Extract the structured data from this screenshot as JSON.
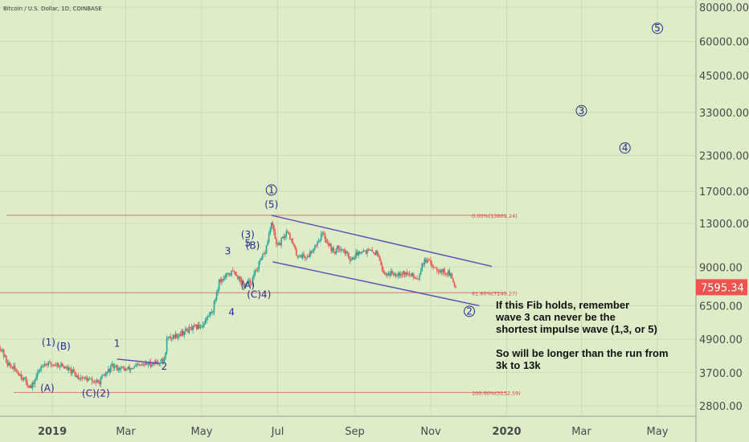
{
  "header": {
    "symbol_line": "Bitcoin / U.S. Dollar, 1D, COINBASE"
  },
  "colors": {
    "background": "#dcedc8",
    "grid": "#c9ddb4",
    "up_candle": "#26a69a",
    "down_candle": "#ef5350",
    "channel": "#5b4bb7",
    "fib": "#e57373",
    "wave_label": "#2b2a8f",
    "price_tag": "#ef5350"
  },
  "chart_data": {
    "type": "candlestick",
    "title": "Bitcoin / U.S. Dollar, 1D, COINBASE",
    "y_scale": "log",
    "ylim": [
      2600,
      85000
    ],
    "x_range": [
      "2018-11-20",
      "2020-06-01"
    ],
    "x_ticks": [
      {
        "date": "2019-01-01",
        "label": "2019",
        "bold": true
      },
      {
        "date": "2019-03-01",
        "label": "Mar"
      },
      {
        "date": "2019-05-01",
        "label": "May"
      },
      {
        "date": "2019-07-01",
        "label": "Jul"
      },
      {
        "date": "2019-09-01",
        "label": "Sep"
      },
      {
        "date": "2019-11-01",
        "label": "Nov"
      },
      {
        "date": "2020-01-01",
        "label": "2020",
        "bold": true
      },
      {
        "date": "2020-03-01",
        "label": "Mar"
      },
      {
        "date": "2020-05-01",
        "label": "May"
      }
    ],
    "y_ticks": [
      {
        "value": 80000,
        "label": "80000.00"
      },
      {
        "value": 60000,
        "label": "60000.00"
      },
      {
        "value": 45000,
        "label": "45000.00"
      },
      {
        "value": 33000,
        "label": "33000.00"
      },
      {
        "value": 23000,
        "label": "23000.00"
      },
      {
        "value": 17000,
        "label": "17000.00"
      },
      {
        "value": 13000,
        "label": "13000.00"
      },
      {
        "value": 9000,
        "label": "9000.00"
      },
      {
        "value": 6500,
        "label": "6500.00"
      },
      {
        "value": 4900,
        "label": "4900.00"
      },
      {
        "value": 3700,
        "label": "3700.00"
      },
      {
        "value": 2800,
        "label": "2800.00"
      }
    ],
    "current_price": {
      "value": 7595.34,
      "label": "7595.34"
    },
    "close_path": [
      [
        "2018-11-20",
        4600
      ],
      [
        "2018-11-26",
        4000
      ],
      [
        "2018-12-05",
        3700
      ],
      [
        "2018-12-15",
        3250
      ],
      [
        "2018-12-24",
        4000
      ],
      [
        "2019-01-08",
        3950
      ],
      [
        "2019-01-22",
        3580
      ],
      [
        "2019-02-07",
        3400
      ],
      [
        "2019-02-18",
        3900
      ],
      [
        "2019-03-01",
        3800
      ],
      [
        "2019-03-15",
        3950
      ],
      [
        "2019-04-01",
        4100
      ],
      [
        "2019-04-03",
        4900
      ],
      [
        "2019-04-20",
        5300
      ],
      [
        "2019-05-01",
        5500
      ],
      [
        "2019-05-10",
        6300
      ],
      [
        "2019-05-15",
        8000
      ],
      [
        "2019-05-27",
        8700
      ],
      [
        "2019-06-04",
        7700
      ],
      [
        "2019-06-10",
        8000
      ],
      [
        "2019-06-15",
        9000
      ],
      [
        "2019-06-21",
        10200
      ],
      [
        "2019-06-26",
        13000
      ],
      [
        "2019-07-01",
        10600
      ],
      [
        "2019-07-09",
        12300
      ],
      [
        "2019-07-16",
        10000
      ],
      [
        "2019-07-25",
        9800
      ],
      [
        "2019-08-06",
        11900
      ],
      [
        "2019-08-15",
        10200
      ],
      [
        "2019-08-20",
        10700
      ],
      [
        "2019-08-29",
        9600
      ],
      [
        "2019-09-06",
        10400
      ],
      [
        "2019-09-20",
        10100
      ],
      [
        "2019-09-24",
        8500
      ],
      [
        "2019-10-10",
        8600
      ],
      [
        "2019-10-22",
        8200
      ],
      [
        "2019-10-25",
        9300
      ],
      [
        "2019-10-28",
        9500
      ],
      [
        "2019-11-08",
        8800
      ],
      [
        "2019-11-16",
        8500
      ],
      [
        "2019-11-21",
        7595
      ]
    ],
    "channel_upper": {
      "start": [
        "2019-06-26",
        13900
      ],
      "end": [
        "2019-12-20",
        9050
      ]
    },
    "channel_lower": {
      "start": [
        "2019-06-27",
        9400
      ],
      "end": [
        "2019-12-10",
        6500
      ]
    },
    "resistance_line": {
      "start": [
        "2019-02-22",
        4150
      ],
      "end": [
        "2019-03-28",
        4000
      ]
    },
    "fib_levels": [
      {
        "value": 13909.24,
        "label": "0.00%(13909.24)",
        "start": "2018-11-25",
        "end": "2019-12-31"
      },
      {
        "value": 7249.27,
        "label": "61.80%(7249.27)",
        "start": "2018-11-20",
        "end": "2019-12-31"
      },
      {
        "value": 3132.59,
        "label": "100.00%(3132.59)",
        "start": "2018-12-01",
        "end": "2019-12-31"
      }
    ],
    "wave_labels": [
      {
        "text": "(1)",
        "date": "2018-12-29",
        "price": 4650
      },
      {
        "text": "(B)",
        "date": "2019-01-10",
        "price": 4500
      },
      {
        "text": "(A)",
        "date": "2018-12-28",
        "price": 3160
      },
      {
        "text": "(C)(2)",
        "date": "2019-02-05",
        "price": 3030
      },
      {
        "text": "1",
        "date": "2019-02-22",
        "price": 4600
      },
      {
        "text": "2",
        "date": "2019-04-01",
        "price": 3800
      },
      {
        "text": "3",
        "date": "2019-05-22",
        "price": 10000
      },
      {
        "text": "4",
        "date": "2019-05-25",
        "price": 6000
      },
      {
        "text": "(3)",
        "date": "2019-06-07",
        "price": 11500
      },
      {
        "text": "5",
        "date": "2019-06-07",
        "price": 10700
      },
      {
        "text": "(B)",
        "date": "2019-06-11",
        "price": 10500
      },
      {
        "text": "(A)",
        "date": "2019-06-07",
        "price": 7500
      },
      {
        "text": "(C)4)",
        "date": "2019-06-16",
        "price": 6950
      },
      {
        "text": "(5)",
        "date": "2019-06-26",
        "price": 14800
      }
    ],
    "circle_labels": [
      {
        "text": "1",
        "date": "2019-06-26",
        "price": 17200
      },
      {
        "text": "2",
        "date": "2019-12-02",
        "price": 6200
      },
      {
        "text": "3",
        "date": "2020-03-01",
        "price": 33500
      },
      {
        "text": "4",
        "date": "2020-04-05",
        "price": 24500
      },
      {
        "text": "5",
        "date": "2020-05-01",
        "price": 67000
      }
    ],
    "annotation_lines": [
      "If this Fib holds, remember",
      "wave 3 can never be the",
      "shortest impulse wave (1,3, or 5)",
      "",
      "So will be longer than the run from",
      "3k to 13k"
    ]
  }
}
